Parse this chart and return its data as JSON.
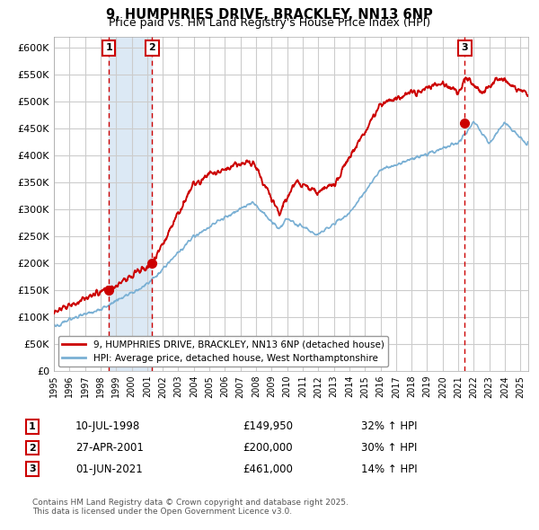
{
  "title_line1": "9, HUMPHRIES DRIVE, BRACKLEY, NN13 6NP",
  "title_line2": "Price paid vs. HM Land Registry's House Price Index (HPI)",
  "ylabel": "",
  "xlabel": "",
  "ylim": [
    0,
    620000
  ],
  "yticks": [
    0,
    50000,
    100000,
    150000,
    200000,
    250000,
    300000,
    350000,
    400000,
    450000,
    500000,
    550000,
    600000
  ],
  "ytick_labels": [
    "£0",
    "£50K",
    "£100K",
    "£150K",
    "£200K",
    "£250K",
    "£300K",
    "£350K",
    "£400K",
    "£450K",
    "£500K",
    "£550K",
    "£600K"
  ],
  "background_color": "#ffffff",
  "plot_bg_color": "#ffffff",
  "grid_color": "#cccccc",
  "red_line_color": "#cc0000",
  "blue_line_color": "#7ab0d4",
  "sale_marker_color": "#cc0000",
  "dashed_line_color": "#cc0000",
  "shade_color": "#dce9f5",
  "legend_line1": "9, HUMPHRIES DRIVE, BRACKLEY, NN13 6NP (detached house)",
  "legend_line2": "HPI: Average price, detached house, West Northamptonshire",
  "sale1_label": "1",
  "sale1_date": "10-JUL-1998",
  "sale1_price": "£149,950",
  "sale1_hpi": "32% ↑ HPI",
  "sale1_year": 1998.53,
  "sale1_value": 149950,
  "sale2_label": "2",
  "sale2_date": "27-APR-2001",
  "sale2_price": "£200,000",
  "sale2_hpi": "30% ↑ HPI",
  "sale2_year": 2001.32,
  "sale2_value": 200000,
  "sale3_label": "3",
  "sale3_date": "01-JUN-2021",
  "sale3_price": "£461,000",
  "sale3_hpi": "14% ↑ HPI",
  "sale3_year": 2021.42,
  "sale3_value": 461000,
  "footnote": "Contains HM Land Registry data © Crown copyright and database right 2025.\nThis data is licensed under the Open Government Licence v3.0.",
  "xmin": 1995.0,
  "xmax": 2025.5
}
